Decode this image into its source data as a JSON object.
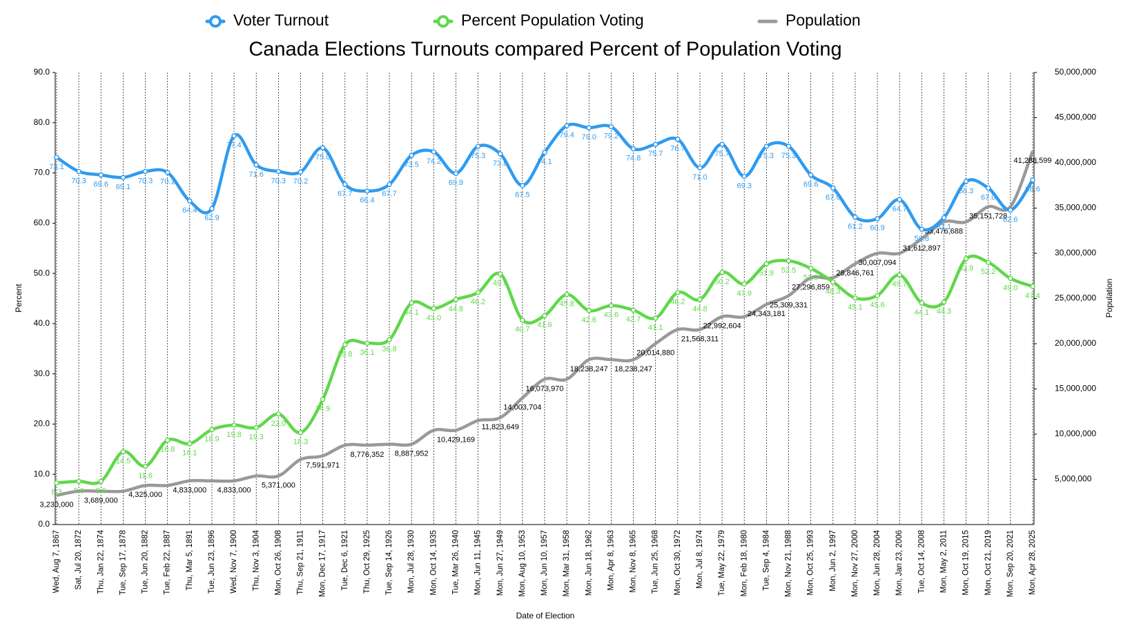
{
  "chart_data": {
    "type": "line",
    "title": "Canada Elections Turnouts compared Percent of Population Voting",
    "x_label": "Date of Election",
    "y_label": "Percent",
    "y2_label": "Population",
    "legend": "top",
    "grid": "vertical-dotted",
    "categories": [
      "Wed, Aug 7, 1867",
      "Sat, Jul 20, 1872",
      "Thu, Jan 22, 1874",
      "Tue, Sep 17, 1878",
      "Tue, Jun 20, 1882",
      "Tue, Feb 22, 1887",
      "Thu, Mar 5, 1891",
      "Tue, Jun 23, 1896",
      "Wed, Nov 7, 1900",
      "Thu, Nov 3, 1904",
      "Mon, Oct 26, 1908",
      "Thu, Sep 21, 1911",
      "Mon, Dec 17, 1917",
      "Tue, Dec 6, 1921",
      "Thu, Oct 29, 1925",
      "Tue, Sep 14, 1926",
      "Mon, Jul 28, 1930",
      "Mon, Oct 14, 1935",
      "Tue, Mar 26, 1940",
      "Mon, Jun 11, 1945",
      "Mon, Jun 27, 1949",
      "Mon, Aug 10, 1953",
      "Mon, Jun 10, 1957",
      "Mon, Mar 31, 1958",
      "Mon, Jun 18, 1962",
      "Mon, Apr 8, 1963",
      "Mon, Nov 8, 1965",
      "Tue, Jun 25, 1968",
      "Mon, Oct 30, 1972",
      "Mon, Jul 8, 1974",
      "Tue, May 22, 1979",
      "Mon, Feb 18, 1980",
      "Tue, Sep 4, 1984",
      "Mon, Nov 21, 1988",
      "Mon, Oct 25, 1993",
      "Mon, Jun 2, 1997",
      "Mon, Nov 27, 2000",
      "Mon, Jun 28, 2004",
      "Mon, Jan 23, 2006",
      "Tue, Oct 14, 2008",
      "Mon, May 2, 2011",
      "Mon, Oct 19, 2015",
      "Mon, Oct 21, 2019",
      "Mon, Sep 20, 2021",
      "Mon, Apr 28, 2025"
    ],
    "series": [
      {
        "name": "Voter Turnout",
        "color": "#2f9bf0",
        "markers": true,
        "values": [
          73.1,
          70.3,
          69.6,
          69.1,
          70.3,
          70.1,
          64.4,
          62.9,
          77.4,
          71.6,
          70.3,
          70.2,
          75.0,
          67.7,
          66.4,
          67.7,
          73.5,
          74.2,
          69.9,
          75.3,
          73.8,
          67.5,
          74.1,
          79.4,
          79.0,
          79.2,
          74.8,
          75.7,
          76.7,
          71.0,
          75.7,
          69.3,
          75.3,
          75.3,
          69.6,
          67.0,
          61.2,
          60.9,
          64.7,
          58.8,
          61.1,
          68.3,
          67.0,
          62.6,
          68.6
        ],
        "value_labels": [
          "73.1",
          "70.3",
          "69.6",
          "69.1",
          "70.3",
          "70.1",
          "64.4",
          "62.9",
          "77.4",
          "71.6",
          "70.3",
          "70.2",
          "75.0",
          "67.7",
          "66.4",
          "67.7",
          "73.5",
          "74.2",
          "69.9",
          "75.3",
          "73.8",
          "67.5",
          "74.1",
          "79.4",
          "79.0",
          "79.2",
          "74.8",
          "75.7",
          "76.7",
          "71.0",
          "75.7",
          "69.3",
          "75.3",
          "75.3",
          "69.6",
          "67.0",
          "61.2",
          "60.9",
          "64.7",
          "58.8",
          "61.1",
          "68.3",
          "67.0",
          "62.6",
          "68.6"
        ]
      },
      {
        "name": "Percent Population Voting",
        "color": "#5fd84a",
        "markers": true,
        "values": [
          8.3,
          8.6,
          8.6,
          14.5,
          11.6,
          16.8,
          16.1,
          18.9,
          19.8,
          19.3,
          22.0,
          18.3,
          24.9,
          35.8,
          36.1,
          36.8,
          44.1,
          43.0,
          44.8,
          46.2,
          49.9,
          40.7,
          41.6,
          45.8,
          42.6,
          43.6,
          42.7,
          41.1,
          46.2,
          44.8,
          50.2,
          47.9,
          51.9,
          52.5,
          51.0,
          48.3,
          45.1,
          45.6,
          49.7,
          44.1,
          44.3,
          52.9,
          52.2,
          49.0,
          47.4
        ],
        "value_labels": [
          "8.3",
          "8.6",
          "8.6",
          "14.5",
          "11.6",
          "16.8",
          "16.1",
          "18.9",
          "19.8",
          "19.3",
          "22.0",
          "18.3",
          "24.9",
          "35.8",
          "36.1",
          "36.8",
          "44.1",
          "43.0",
          "44.8",
          "46.2",
          "49.9",
          "40.7",
          "41.6",
          "45.8",
          "42.6",
          "43.6",
          "42.7",
          "41.1",
          "46.2",
          "44.8",
          "50.2",
          "47.9",
          "51.9",
          "52.5",
          "51.0",
          "48.3",
          "45.1",
          "45.6",
          "49.7",
          "44.1",
          "44.3",
          "52.9",
          "52.2",
          "49.0",
          "47.4"
        ]
      },
      {
        "name": "Population",
        "color": "#999999",
        "axis": "y2",
        "markers": false,
        "values": [
          3230000,
          3689000,
          3689000,
          3689000,
          4325000,
          4325000,
          4833000,
          4833000,
          4833000,
          5371000,
          5371000,
          7200000,
          7591971,
          8776352,
          8776352,
          8887952,
          8887952,
          10429169,
          10429169,
          11500000,
          11823649,
          14003704,
          16073970,
          16073970,
          18238247,
          18238247,
          18238247,
          20014880,
          21568311,
          21568311,
          22992604,
          22992604,
          24343181,
          25309331,
          27296859,
          27296859,
          28846761,
          30007094,
          30007094,
          31612897,
          33476688,
          33476688,
          35151728,
          35151728,
          41288599
        ],
        "value_labels": [
          "3,230,000",
          null,
          "3,689,000",
          null,
          "4,325,000",
          null,
          "4,833,000",
          null,
          "4,833,000",
          null,
          "5,371,000",
          null,
          "7,591,971",
          null,
          "8,776,352",
          null,
          "8,887,952",
          null,
          "10,429,169",
          null,
          "11,823,649",
          "14,003,704",
          "16,073,970",
          null,
          "18,238,247",
          null,
          "18,238,247",
          "20,014,880",
          null,
          "21,568,311",
          "22,992,604",
          null,
          "24,343,181",
          "25,309,331",
          "27,296,859",
          null,
          "28,846,761",
          "30,007,094",
          null,
          "31,612,897",
          "33,476,688",
          null,
          "35,151,728",
          null,
          "41,288,599"
        ]
      }
    ],
    "ylim": [
      0,
      90
    ],
    "yticks": [
      {
        "value": 0,
        "label": "0.0"
      },
      {
        "value": 10,
        "label": "10.0"
      },
      {
        "value": 20,
        "label": "20.0"
      },
      {
        "value": 30,
        "label": "30.0"
      },
      {
        "value": 40,
        "label": "40.0"
      },
      {
        "value": 50,
        "label": "50.0"
      },
      {
        "value": 60,
        "label": "60.0"
      },
      {
        "value": 70,
        "label": "70.0"
      },
      {
        "value": 80,
        "label": "80.0"
      },
      {
        "value": 90,
        "label": "90.0"
      }
    ],
    "y2lim": [
      0,
      50000000
    ],
    "y2ticks": [
      {
        "value": 5000000,
        "label": "5,000,000"
      },
      {
        "value": 10000000,
        "label": "10,000,000"
      },
      {
        "value": 15000000,
        "label": "15,000,000"
      },
      {
        "value": 20000000,
        "label": "20,000,000"
      },
      {
        "value": 25000000,
        "label": "25,000,000"
      },
      {
        "value": 30000000,
        "label": "30,000,000"
      },
      {
        "value": 35000000,
        "label": "35,000,000"
      },
      {
        "value": 40000000,
        "label": "40,000,000"
      },
      {
        "value": 45000000,
        "label": "45,000,000"
      },
      {
        "value": 50000000,
        "label": "50,000,000"
      }
    ]
  }
}
